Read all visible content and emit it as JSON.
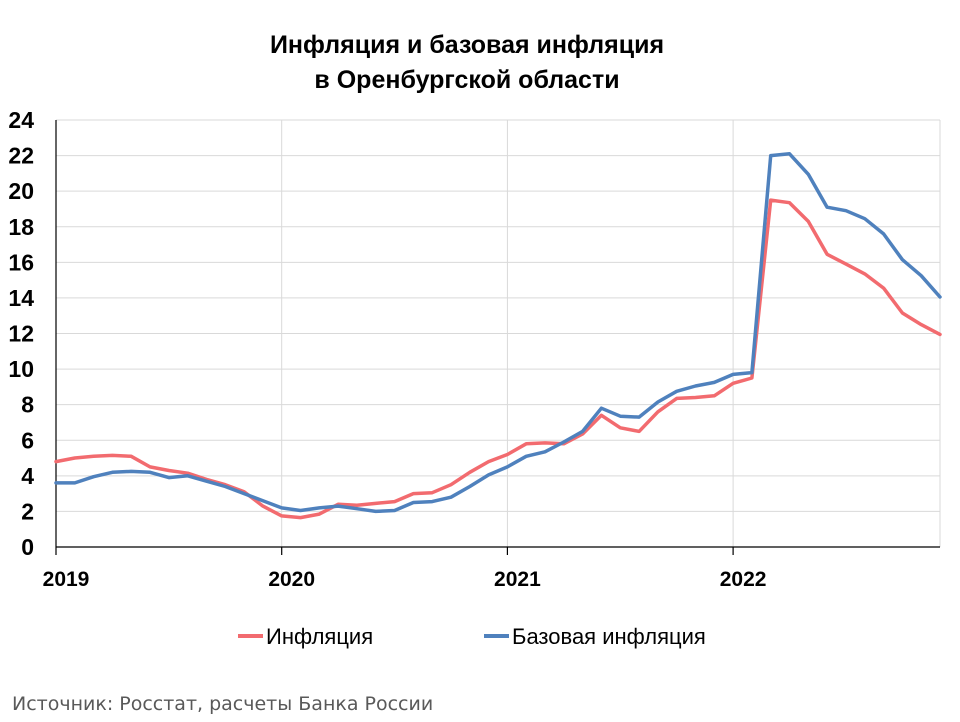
{
  "chart_data": {
    "type": "line",
    "title": [
      "Инфляция и базовая инфляция",
      "в  Оренбургской области"
    ],
    "xlabel": "",
    "ylabel": "",
    "ylim": [
      0,
      24
    ],
    "yticks": [
      0,
      2,
      4,
      6,
      8,
      10,
      12,
      14,
      16,
      18,
      20,
      22,
      24
    ],
    "year_labels": [
      "2019",
      "2020",
      "2021",
      "2022"
    ],
    "grid": true,
    "legend_position": "bottom",
    "x": [
      "2019-01",
      "2019-02",
      "2019-03",
      "2019-04",
      "2019-05",
      "2019-06",
      "2019-07",
      "2019-08",
      "2019-09",
      "2019-10",
      "2019-11",
      "2019-12",
      "2020-01",
      "2020-02",
      "2020-03",
      "2020-04",
      "2020-05",
      "2020-06",
      "2020-07",
      "2020-08",
      "2020-09",
      "2020-10",
      "2020-11",
      "2020-12",
      "2021-01",
      "2021-02",
      "2021-03",
      "2021-04",
      "2021-05",
      "2021-06",
      "2021-07",
      "2021-08",
      "2021-09",
      "2021-10",
      "2021-11",
      "2021-12",
      "2022-01",
      "2022-02",
      "2022-03",
      "2022-04",
      "2022-05",
      "2022-06",
      "2022-07",
      "2022-08",
      "2022-09",
      "2022-10",
      "2022-11",
      "2022-12"
    ],
    "series": [
      {
        "name": "Инфляция",
        "color": "#f26b6f",
        "values": [
          4.8,
          5.0,
          5.1,
          5.15,
          5.1,
          4.5,
          4.3,
          4.15,
          3.8,
          3.5,
          3.1,
          2.3,
          1.75,
          1.65,
          1.85,
          2.4,
          2.35,
          2.45,
          2.55,
          3.0,
          3.05,
          3.5,
          4.2,
          4.8,
          5.2,
          5.8,
          5.85,
          5.8,
          6.35,
          7.4,
          6.7,
          6.5,
          7.6,
          8.35,
          8.4,
          8.5,
          9.2,
          9.5,
          19.5,
          19.35,
          18.3,
          16.45,
          15.9,
          15.35,
          14.55,
          13.15,
          12.5,
          11.95
        ]
      },
      {
        "name": "Базовая инфляция",
        "color": "#4f81bd",
        "values": [
          3.6,
          3.6,
          3.95,
          4.2,
          4.25,
          4.2,
          3.9,
          4.0,
          3.7,
          3.4,
          3.0,
          2.6,
          2.2,
          2.05,
          2.2,
          2.3,
          2.15,
          2.0,
          2.05,
          2.5,
          2.55,
          2.8,
          3.4,
          4.05,
          4.5,
          5.1,
          5.35,
          5.9,
          6.5,
          7.8,
          7.35,
          7.3,
          8.15,
          8.75,
          9.05,
          9.25,
          9.7,
          9.8,
          22.0,
          22.1,
          20.95,
          19.1,
          18.9,
          18.45,
          17.6,
          16.15,
          15.25,
          14.05
        ]
      }
    ]
  },
  "legend": {
    "items": [
      {
        "label": "Инфляция",
        "color": "#f26b6f"
      },
      {
        "label": "Базовая инфляция",
        "color": "#4f81bd"
      }
    ]
  },
  "footer": {
    "source": "Источник: Росстат, расчеты Банка России"
  }
}
